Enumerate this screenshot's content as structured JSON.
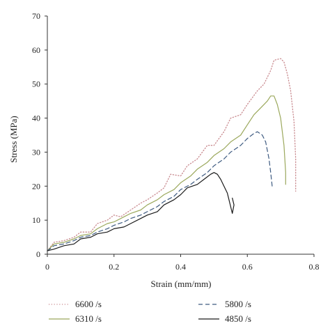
{
  "chart_data": {
    "type": "line",
    "title": "",
    "xlabel": "Strain (mm/mm)",
    "ylabel": "Stress (MPa)",
    "xlim": [
      0,
      0.8
    ],
    "ylim": [
      0,
      70
    ],
    "x_ticks": [
      0,
      0.2,
      0.4,
      0.6,
      0.8
    ],
    "x_tick_labels": [
      "0",
      "0.2",
      "0.4",
      "0.6",
      "0.8"
    ],
    "y_ticks": [
      0,
      10,
      20,
      30,
      40,
      50,
      60,
      70
    ],
    "y_tick_labels": [
      "0",
      "10",
      "20",
      "30",
      "40",
      "50",
      "60",
      "70"
    ],
    "grid": false,
    "legend_position": "bottom",
    "series": [
      {
        "name": "6600 /s",
        "color": "#c98a8f",
        "style": "dotted",
        "x": [
          0,
          0.02,
          0.05,
          0.08,
          0.1,
          0.13,
          0.15,
          0.18,
          0.2,
          0.22,
          0.25,
          0.28,
          0.3,
          0.33,
          0.35,
          0.37,
          0.4,
          0.42,
          0.45,
          0.48,
          0.5,
          0.53,
          0.55,
          0.58,
          0.6,
          0.63,
          0.65,
          0.67,
          0.68,
          0.7,
          0.71,
          0.72,
          0.73,
          0.74,
          0.745,
          0.745
        ],
        "y": [
          1,
          3.5,
          4,
          5,
          6.5,
          6.5,
          9,
          10,
          11.5,
          11,
          13,
          15,
          16,
          18,
          19.5,
          23.5,
          23,
          26,
          28,
          32,
          32,
          36,
          40,
          41,
          44,
          48,
          50,
          54,
          57,
          57.5,
          56.5,
          53,
          48,
          39,
          28,
          18.5
        ]
      },
      {
        "name": "6310 /s",
        "color": "#9ba85c",
        "style": "solid",
        "x": [
          0,
          0.02,
          0.05,
          0.08,
          0.1,
          0.13,
          0.15,
          0.18,
          0.2,
          0.23,
          0.25,
          0.28,
          0.3,
          0.33,
          0.35,
          0.38,
          0.4,
          0.43,
          0.45,
          0.48,
          0.5,
          0.53,
          0.55,
          0.58,
          0.6,
          0.62,
          0.64,
          0.66,
          0.67,
          0.68,
          0.69,
          0.7,
          0.71,
          0.715,
          0.715
        ],
        "y": [
          1,
          3,
          3.5,
          4.5,
          5.5,
          6,
          7.5,
          9,
          9.5,
          11,
          12,
          13,
          14.5,
          16,
          17.5,
          19,
          21,
          23,
          25,
          27,
          29,
          31,
          33,
          35,
          38,
          41,
          43,
          45,
          46.5,
          46.5,
          44,
          40,
          32,
          24,
          20.5
        ]
      },
      {
        "name": "5800 /s",
        "color": "#3d5a80",
        "style": "dashed",
        "x": [
          0,
          0.02,
          0.05,
          0.08,
          0.1,
          0.13,
          0.15,
          0.18,
          0.2,
          0.23,
          0.25,
          0.28,
          0.3,
          0.33,
          0.35,
          0.38,
          0.4,
          0.43,
          0.45,
          0.48,
          0.5,
          0.53,
          0.55,
          0.58,
          0.6,
          0.62,
          0.63,
          0.645,
          0.655,
          0.665,
          0.67,
          0.675
        ],
        "y": [
          1,
          2.5,
          3,
          4,
          5,
          5.5,
          6.5,
          7.5,
          8.5,
          9.5,
          10.5,
          11.5,
          12.5,
          14,
          15.5,
          17,
          19,
          20.5,
          22,
          24,
          26,
          28,
          30,
          32,
          34,
          35.5,
          36,
          35,
          33,
          28,
          24,
          19.5
        ]
      },
      {
        "name": "4850 /s",
        "color": "#1a1a1a",
        "style": "solid",
        "x": [
          0,
          0.02,
          0.05,
          0.08,
          0.1,
          0.13,
          0.15,
          0.18,
          0.2,
          0.23,
          0.25,
          0.28,
          0.3,
          0.33,
          0.35,
          0.38,
          0.4,
          0.42,
          0.45,
          0.47,
          0.49,
          0.5,
          0.51,
          0.52,
          0.53,
          0.54,
          0.545,
          0.55,
          0.555,
          0.56,
          0.555
        ],
        "y": [
          1,
          1.5,
          2.5,
          3,
          4.5,
          5,
          6,
          6.5,
          7.5,
          8,
          9,
          10.5,
          11.5,
          12.5,
          14.5,
          16,
          17.5,
          19.5,
          20.5,
          22,
          23.5,
          24,
          23.5,
          22,
          20,
          18,
          16,
          14,
          12,
          14.5,
          16.5
        ]
      }
    ]
  }
}
